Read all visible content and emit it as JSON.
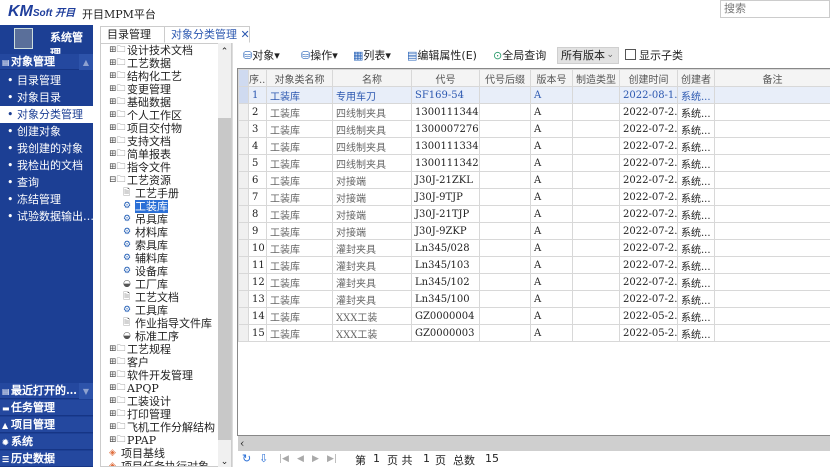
{
  "header": {
    "logo": "KMSoft开目",
    "app_title": "开目MPM平台",
    "search_placeholder": "搜索"
  },
  "sidebar": {
    "user": "系统管理",
    "section": "对象管理",
    "items": [
      {
        "label": "目录管理"
      },
      {
        "label": "对象目录"
      },
      {
        "label": "对象分类管理"
      },
      {
        "label": "创建对象"
      },
      {
        "label": "我创建的对象"
      },
      {
        "label": "我检出的文档"
      },
      {
        "label": "查询"
      },
      {
        "label": "冻结管理"
      },
      {
        "label": "试验数据输出…"
      }
    ],
    "bottom": [
      {
        "label": "最近打开的…",
        "icon": "recent-icon"
      },
      {
        "label": "任务管理",
        "icon": "task-icon"
      },
      {
        "label": "项目管理",
        "icon": "project-icon"
      },
      {
        "label": "系统",
        "icon": "gear-icon"
      },
      {
        "label": "历史数据",
        "icon": "database-icon"
      }
    ]
  },
  "tabs": [
    {
      "label": "目录管理"
    },
    {
      "label": "对象分类管理",
      "active": true
    }
  ],
  "tree": [
    {
      "label": "设计技术文档",
      "type": "folder",
      "level": 0
    },
    {
      "label": "工艺数据",
      "type": "folder",
      "level": 0
    },
    {
      "label": "结构化工艺",
      "type": "folder",
      "level": 0
    },
    {
      "label": "变更管理",
      "type": "folder",
      "level": 0
    },
    {
      "label": "基础数据",
      "type": "folder",
      "level": 0
    },
    {
      "label": "个人工作区",
      "type": "folder",
      "level": 0
    },
    {
      "label": "项目交付物",
      "type": "folder",
      "level": 0
    },
    {
      "label": "支持文档",
      "type": "folder",
      "level": 0
    },
    {
      "label": "简单报表",
      "type": "folder",
      "level": 0
    },
    {
      "label": "指令文件",
      "type": "folder",
      "level": 0
    },
    {
      "label": "工艺资源",
      "type": "folder-open",
      "level": 0
    },
    {
      "label": "工艺手册",
      "type": "doc",
      "level": 1
    },
    {
      "label": "工装库",
      "type": "gear",
      "level": 1,
      "selected": true
    },
    {
      "label": "吊具库",
      "type": "gear",
      "level": 1
    },
    {
      "label": "材料库",
      "type": "gear",
      "level": 1
    },
    {
      "label": "索具库",
      "type": "gear",
      "level": 1
    },
    {
      "label": "辅料库",
      "type": "gear",
      "level": 1
    },
    {
      "label": "设备库",
      "type": "gear",
      "level": 1
    },
    {
      "label": "工厂库",
      "type": "stack",
      "level": 1
    },
    {
      "label": "工艺文档",
      "type": "doc",
      "level": 1
    },
    {
      "label": "工具库",
      "type": "gear",
      "level": 1
    },
    {
      "label": "作业指导文件库",
      "type": "doc",
      "level": 1
    },
    {
      "label": "标准工序",
      "type": "stack",
      "level": 1
    },
    {
      "label": "工艺规程",
      "type": "folder",
      "level": 0
    },
    {
      "label": "客户",
      "type": "folder",
      "level": 0
    },
    {
      "label": "软件开发管理",
      "type": "folder",
      "level": 0
    },
    {
      "label": "APQP",
      "type": "folder",
      "level": 0
    },
    {
      "label": "工装设计",
      "type": "folder",
      "level": 0
    },
    {
      "label": "打印管理",
      "type": "folder",
      "level": 0
    },
    {
      "label": "飞机工作分解结构",
      "type": "folder",
      "level": 0
    },
    {
      "label": "PPAP",
      "type": "folder",
      "level": 0
    },
    {
      "label": "项目基线",
      "type": "layer",
      "level": 0
    },
    {
      "label": "项目任务执行对象",
      "type": "layer",
      "level": 0
    }
  ],
  "toolbar": {
    "object": "对象",
    "operate": "操作",
    "list": "列表",
    "edit_attr": "编辑属性(E)",
    "global_query": "全局查询",
    "version": "所有版本",
    "show_sub": "显示子类"
  },
  "grid": {
    "columns": [
      "序...",
      "对象类名称",
      "名称",
      "代号",
      "代号后缀",
      "版本号",
      "制造类型",
      "创建时间",
      "创建者",
      "备注"
    ],
    "rows": [
      [
        "1",
        "工装库",
        "专用车刀",
        "SF169-54",
        "",
        "A",
        "",
        "2022-08-1...",
        "系统...",
        ""
      ],
      [
        "2",
        "工装库",
        "四线制夹具",
        "1300111344",
        "",
        "A",
        "",
        "2022-07-2...",
        "系统...",
        ""
      ],
      [
        "3",
        "工装库",
        "四线制夹具",
        "1300007276",
        "",
        "A",
        "",
        "2022-07-2...",
        "系统...",
        ""
      ],
      [
        "4",
        "工装库",
        "四线制夹具",
        "1300111334",
        "",
        "A",
        "",
        "2022-07-2...",
        "系统...",
        ""
      ],
      [
        "5",
        "工装库",
        "四线制夹具",
        "1300111342",
        "",
        "A",
        "",
        "2022-07-2...",
        "系统...",
        ""
      ],
      [
        "6",
        "工装库",
        "对接端",
        "J30J-21ZKL",
        "",
        "A",
        "",
        "2022-07-2...",
        "系统...",
        ""
      ],
      [
        "7",
        "工装库",
        "对接端",
        "J30J-9TJP",
        "",
        "A",
        "",
        "2022-07-2...",
        "系统...",
        ""
      ],
      [
        "8",
        "工装库",
        "对接端",
        "J30J-21TJP",
        "",
        "A",
        "",
        "2022-07-2...",
        "系统...",
        ""
      ],
      [
        "9",
        "工装库",
        "对接端",
        "J30J-9ZKP",
        "",
        "A",
        "",
        "2022-07-2...",
        "系统...",
        ""
      ],
      [
        "10",
        "工装库",
        "灌封夹具",
        "Ln345/028",
        "",
        "A",
        "",
        "2022-07-2...",
        "系统...",
        ""
      ],
      [
        "11",
        "工装库",
        "灌封夹具",
        "Ln345/103",
        "",
        "A",
        "",
        "2022-07-2...",
        "系统...",
        ""
      ],
      [
        "12",
        "工装库",
        "灌封夹具",
        "Ln345/102",
        "",
        "A",
        "",
        "2022-07-2...",
        "系统...",
        ""
      ],
      [
        "13",
        "工装库",
        "灌封夹具",
        "Ln345/100",
        "",
        "A",
        "",
        "2022-07-2...",
        "系统...",
        ""
      ],
      [
        "14",
        "工装库",
        "XXX工装",
        "GZ0000004",
        "",
        "A",
        "",
        "2022-05-2...",
        "系统...",
        ""
      ],
      [
        "15",
        "工装库",
        "XXX工装",
        "GZ0000003",
        "",
        "A",
        "",
        "2022-05-2...",
        "系统...",
        ""
      ]
    ]
  },
  "pager": {
    "page_prefix": "第",
    "page": "1",
    "page_mid": "页 共",
    "pages": "1",
    "page_suffix": "页",
    "total_label": "总数",
    "total": "15"
  },
  "colors": {
    "sidebar": "#1c3f94",
    "selection": "#2a6fd6",
    "row_selected": "#e8eef9"
  }
}
